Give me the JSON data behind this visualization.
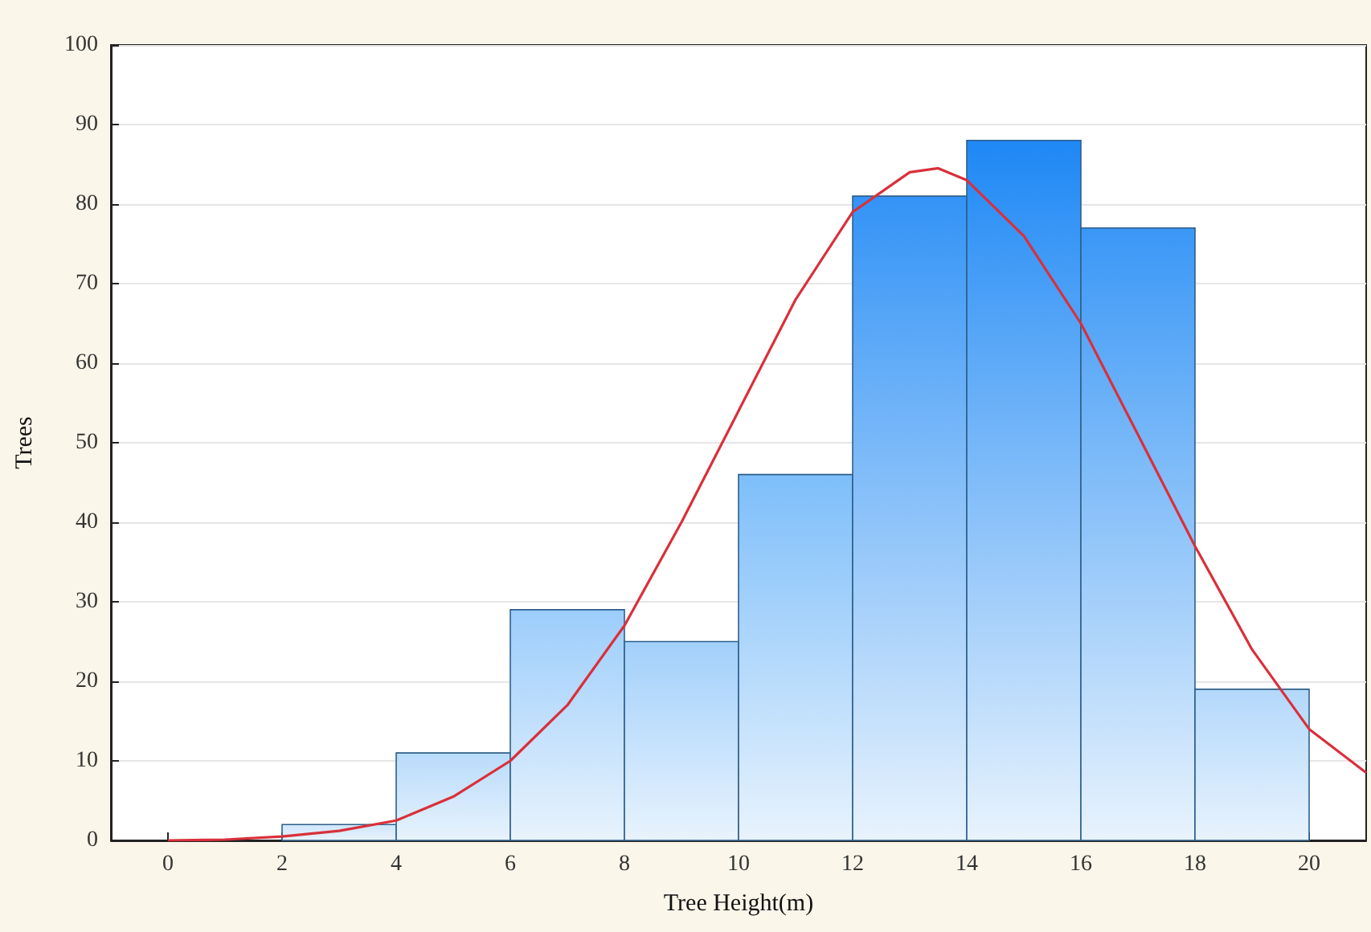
{
  "chart_data": {
    "type": "histogram",
    "xlabel": "Tree Height(m)",
    "ylabel": "Trees",
    "bins": [
      2,
      4,
      6,
      8,
      10,
      12,
      14,
      16,
      18,
      20
    ],
    "values": [
      2,
      11,
      29,
      25,
      46,
      81,
      88,
      77,
      19
    ],
    "colors": [
      "#cfe6fb",
      "#b9dbfb",
      "#9ccdfb",
      "#a2d0fb",
      "#7dbefa",
      "#3393f6",
      "#1e88f5",
      "#3a97f6",
      "#b3d8fb"
    ],
    "series": [
      {
        "type": "line",
        "color": "#d9303a",
        "x": [
          0,
          1,
          2,
          3,
          4,
          5,
          6,
          7,
          8,
          9,
          10,
          11,
          12,
          13,
          13.5,
          14,
          15,
          16,
          17,
          18,
          19,
          20,
          21
        ],
        "values": [
          0,
          0.1,
          0.5,
          1.2,
          2.5,
          5.5,
          10,
          17,
          27,
          40,
          54,
          68,
          79,
          84,
          84.5,
          83,
          76,
          65,
          51,
          37,
          24,
          14,
          8.5
        ]
      }
    ],
    "xlim": [
      -1,
      21
    ],
    "xticks": [
      0,
      2,
      4,
      6,
      8,
      10,
      12,
      14,
      16,
      18,
      20
    ],
    "ylim": [
      0,
      100
    ],
    "yticks": [
      0,
      10,
      20,
      30,
      40,
      50,
      60,
      70,
      80,
      90,
      100
    ],
    "grid": "y",
    "marker": "none",
    "line_style": "solid"
  }
}
